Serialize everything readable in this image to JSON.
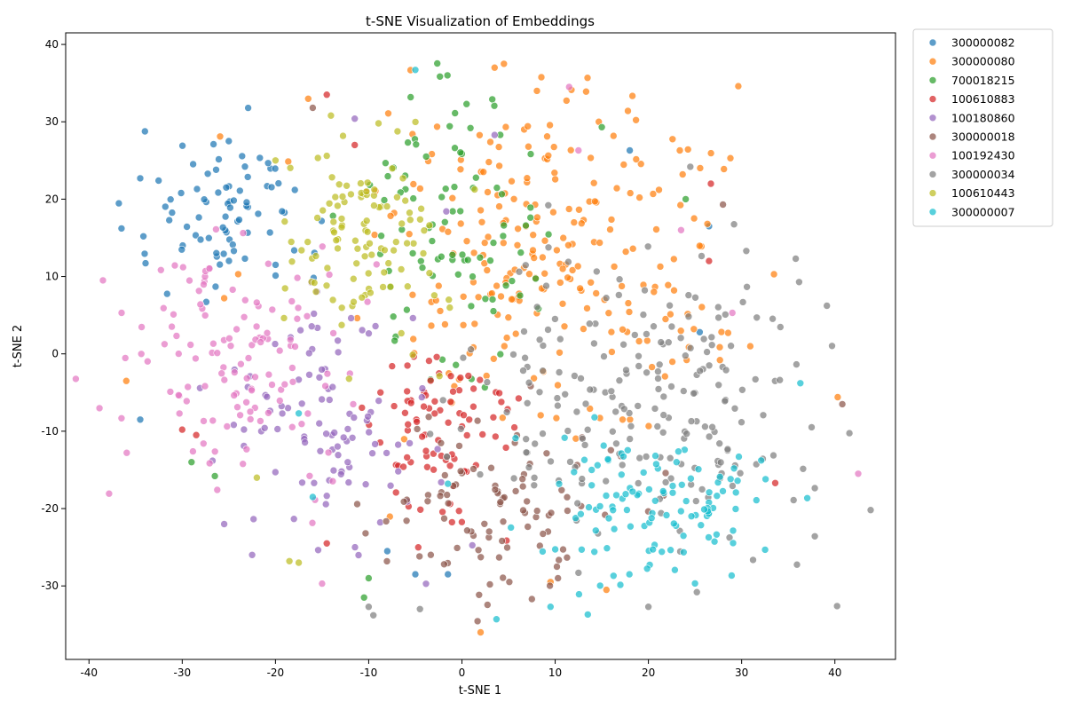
{
  "chart_data": {
    "type": "scatter",
    "title": "t-SNE Visualization of Embeddings",
    "xlabel": "t-SNE 1",
    "ylabel": "t-SNE 2",
    "xlim": [
      -42.5,
      46.5
    ],
    "ylim": [
      -39.5,
      41.5
    ],
    "xticks": [
      -40,
      -30,
      -20,
      -10,
      0,
      10,
      20,
      30,
      40
    ],
    "yticks": [
      -30,
      -20,
      -10,
      0,
      10,
      20,
      30,
      40
    ],
    "grid": false,
    "legend_position": "outside-top-right",
    "series": [
      {
        "name": "300000082",
        "color": "#1f77b4",
        "cluster": {
          "cx": -26,
          "cy": 17,
          "sx": 5,
          "sy": 6,
          "n": 80
        },
        "extra": [
          [
            -34.5,
            22.7
          ],
          [
            -25,
            27.5
          ],
          [
            -34.5,
            -8.5
          ],
          [
            -5,
            -28.5
          ],
          [
            -1.5,
            -28.5
          ],
          [
            18,
            26.3
          ],
          [
            26.5,
            16.5
          ],
          [
            25.5,
            2.8
          ],
          [
            -8,
            -25.5
          ]
        ]
      },
      {
        "name": "300000080",
        "color": "#ff7f0e",
        "cluster": {
          "cx": 10,
          "cy": 12,
          "sx": 9,
          "sy": 11,
          "n": 250
        },
        "extra": [
          [
            4.5,
            37.5
          ],
          [
            3.5,
            37
          ],
          [
            2,
            -36
          ],
          [
            9.5,
            -29.5
          ],
          [
            15.5,
            -30.5
          ],
          [
            40.3,
            -5.6
          ],
          [
            -36,
            -3.5
          ],
          [
            -25.5,
            7.2
          ],
          [
            -24,
            10.3
          ]
        ]
      },
      {
        "name": "700018215",
        "color": "#2ca02c",
        "cluster": {
          "cx": -1,
          "cy": 17,
          "sx": 5,
          "sy": 10,
          "n": 90
        },
        "extra": [
          [
            0.5,
            32.3
          ],
          [
            -10,
            -29
          ],
          [
            -10.5,
            -31.5
          ],
          [
            -29,
            -14
          ],
          [
            -26.5,
            -15.8
          ],
          [
            24,
            20
          ],
          [
            15,
            29.3
          ]
        ]
      },
      {
        "name": "100610883",
        "color": "#d62728",
        "cluster": {
          "cx": -2,
          "cy": -10,
          "sx": 4,
          "sy": 6,
          "n": 85
        },
        "extra": [
          [
            -14.5,
            33.5
          ],
          [
            -11.5,
            27
          ],
          [
            33.6,
            -16.7
          ],
          [
            26.5,
            12
          ],
          [
            26.7,
            22
          ],
          [
            -28.5,
            -10.5
          ],
          [
            -30,
            -9.8
          ],
          [
            -14.5,
            -24.5
          ]
        ]
      },
      {
        "name": "100180860",
        "color": "#9467bd",
        "cluster": {
          "cx": -15,
          "cy": -8,
          "sx": 6,
          "sy": 9,
          "n": 100
        },
        "extra": [
          [
            -11.5,
            30.4
          ],
          [
            3.5,
            28.3
          ],
          [
            -22.5,
            -26
          ],
          [
            -25.5,
            -22
          ]
        ]
      },
      {
        "name": "300000018",
        "color": "#8c564b",
        "cluster": {
          "cx": 3,
          "cy": -20,
          "sx": 6,
          "sy": 5,
          "n": 95
        },
        "extra": [
          [
            -16,
            31.8
          ],
          [
            28,
            19.3
          ],
          [
            40.8,
            -6.5
          ],
          [
            3,
            -29.8
          ],
          [
            7.5,
            -31.7
          ]
        ]
      },
      {
        "name": "100192430",
        "color": "#e377c2",
        "cluster": {
          "cx": -24,
          "cy": -2,
          "sx": 6,
          "sy": 8,
          "n": 125
        },
        "extra": [
          [
            -38.5,
            9.5
          ],
          [
            -36.5,
            5.3
          ],
          [
            11.5,
            34.5
          ],
          [
            42.5,
            -15.5
          ],
          [
            -15,
            -29.7
          ],
          [
            23.5,
            16
          ],
          [
            29,
            5.3
          ],
          [
            12.5,
            26.3
          ]
        ]
      },
      {
        "name": "300000034",
        "color": "#7f7f7f",
        "cluster": {
          "cx": 22,
          "cy": -4,
          "sx": 9,
          "sy": 10,
          "n": 210
        },
        "extra": [
          [
            35.8,
            12.3
          ],
          [
            30.5,
            13.3
          ],
          [
            -9.5,
            -33.8
          ],
          [
            -10,
            -32.7
          ],
          [
            -4.5,
            -33
          ],
          [
            25.2,
            -30.8
          ],
          [
            20,
            -32.7
          ],
          [
            12.5,
            -28.3
          ]
        ]
      },
      {
        "name": "100610443",
        "color": "#bcbd22",
        "cluster": {
          "cx": -11,
          "cy": 15,
          "sx": 4,
          "sy": 7,
          "n": 110
        },
        "extra": [
          [
            -17.5,
            -27
          ],
          [
            -18.5,
            -26.8
          ],
          [
            -22,
            -16
          ],
          [
            -20,
            25
          ]
        ]
      },
      {
        "name": "300000007",
        "color": "#17becf",
        "cluster": {
          "cx": 20,
          "cy": -19,
          "sx": 6,
          "sy": 5,
          "n": 115
        },
        "extra": [
          [
            -5,
            36.7
          ],
          [
            9.5,
            -32.7
          ],
          [
            13.5,
            -33.7
          ],
          [
            3.7,
            -34.3
          ],
          [
            -16,
            -18.5
          ],
          [
            -17.5,
            -7.7
          ],
          [
            36.3,
            -3.8
          ],
          [
            29.7,
            -13.3
          ],
          [
            -1.5,
            -16.8
          ]
        ]
      }
    ]
  }
}
